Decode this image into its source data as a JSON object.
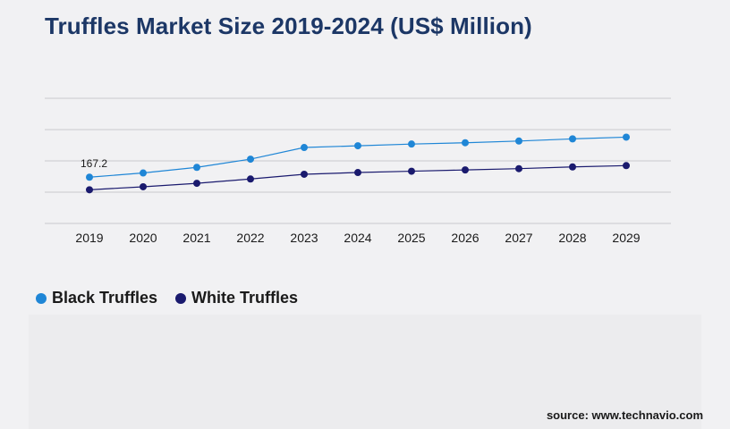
{
  "chart_data": {
    "type": "line",
    "title": "Truffles Market Size 2019-2024 (US$ Million)",
    "categories": [
      "2019",
      "2020",
      "2021",
      "2022",
      "2023",
      "2024",
      "2025",
      "2026",
      "2027",
      "2028",
      "2029"
    ],
    "series": [
      {
        "name": "Black Truffles",
        "color": "#1f86d6",
        "values": [
          167.2,
          177,
          190,
          209,
          236,
          240,
          244,
          247,
          251,
          256,
          260
        ]
      },
      {
        "name": "White Truffles",
        "color": "#1a1a6e",
        "values": [
          138,
          145,
          153,
          163,
          174,
          178,
          181,
          184,
          187,
          191,
          194
        ]
      }
    ],
    "annotations": [
      {
        "series": 0,
        "index": 0,
        "label": "167.2"
      }
    ],
    "ylim": [
      60,
      350
    ],
    "grid": true,
    "y_tick_labels_shown": false,
    "legend_position": "bottom-left"
  },
  "source": "source: www.technavio.com"
}
